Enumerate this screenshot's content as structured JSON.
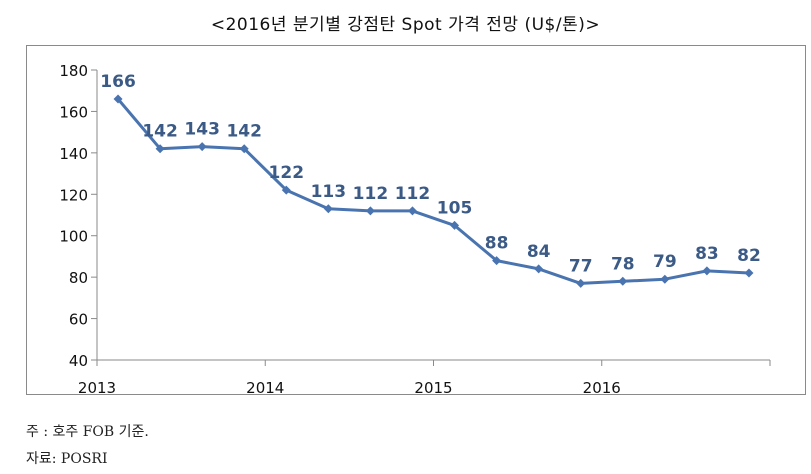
{
  "chart_data": {
    "type": "line",
    "title": "<2016년 분기별 강점탄 Spot 가격 전망 (U$/톤)>",
    "ylim": [
      40,
      180
    ],
    "yticks": [
      40,
      60,
      80,
      100,
      120,
      140,
      160,
      180
    ],
    "xticks": [
      "2013",
      "2014",
      "2015",
      "2016"
    ],
    "grid": false,
    "legend": "none",
    "series_color": "#4a74b0",
    "label_color": "#3b5a86",
    "values": [
      166,
      142,
      143,
      142,
      122,
      113,
      112,
      112,
      105,
      88,
      84,
      77,
      78,
      79,
      83,
      82
    ],
    "data_labels": [
      "166",
      "142",
      "143",
      "142",
      "122",
      "113",
      "112",
      "112",
      "105",
      "88",
      "84",
      "77",
      "78",
      "79",
      "83",
      "82"
    ]
  },
  "notes": {
    "note": "주 : 호주 FOB 기준.",
    "source": "자료: POSRI"
  }
}
